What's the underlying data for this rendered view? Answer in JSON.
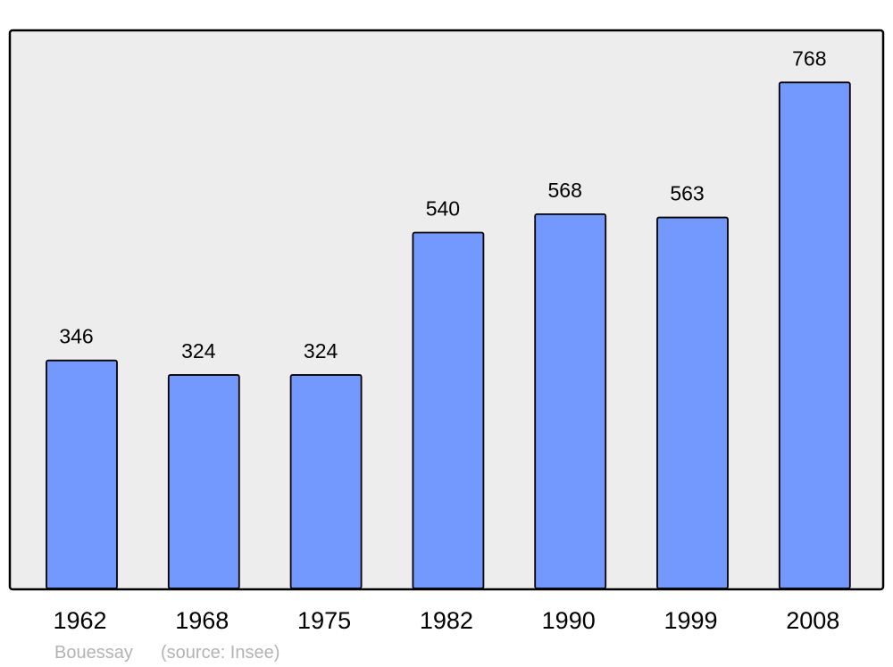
{
  "chart_data": {
    "type": "bar",
    "categories": [
      "1962",
      "1968",
      "1975",
      "1982",
      "1990",
      "1999",
      "2008"
    ],
    "values": [
      346,
      324,
      324,
      540,
      568,
      563,
      768
    ],
    "title": "",
    "xlabel": "",
    "ylabel": "",
    "ylim": [
      0,
      847
    ],
    "grid": false,
    "bar_color": "#7399ff",
    "plot_background": "#ededed",
    "footer": {
      "place": "Bouessay",
      "source": "(source: Insee)"
    }
  }
}
